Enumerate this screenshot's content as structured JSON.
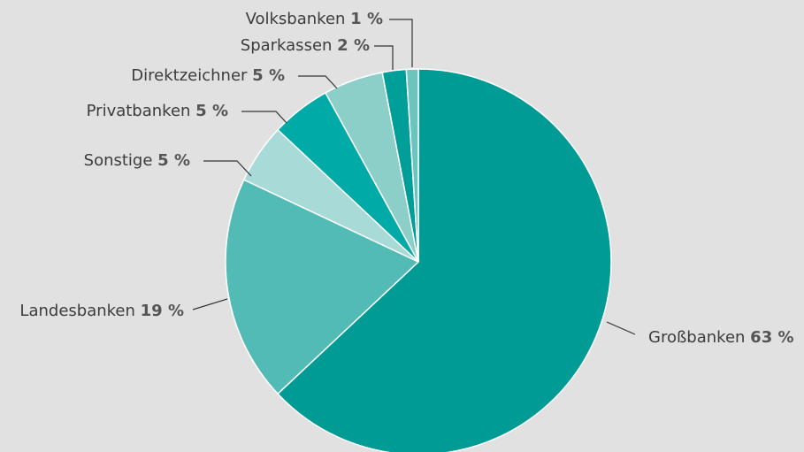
{
  "chart_data": {
    "type": "pie",
    "categories": [
      "Großbanken",
      "Landesbanken",
      "Sonstige",
      "Privatbanken",
      "Direktzeichner",
      "Sparkassen",
      "Volksbanken"
    ],
    "values": [
      63,
      19,
      5,
      5,
      5,
      2,
      1
    ],
    "value_labels": [
      "63 %",
      "19 %",
      "5 %",
      "5 %",
      "5 %",
      "2 %",
      "1 %"
    ],
    "colors": [
      "#009b95",
      "#52bbb5",
      "#a8dad7",
      "#00aaa6",
      "#8ccfc9",
      "#009e98",
      "#6cc4bf"
    ]
  }
}
